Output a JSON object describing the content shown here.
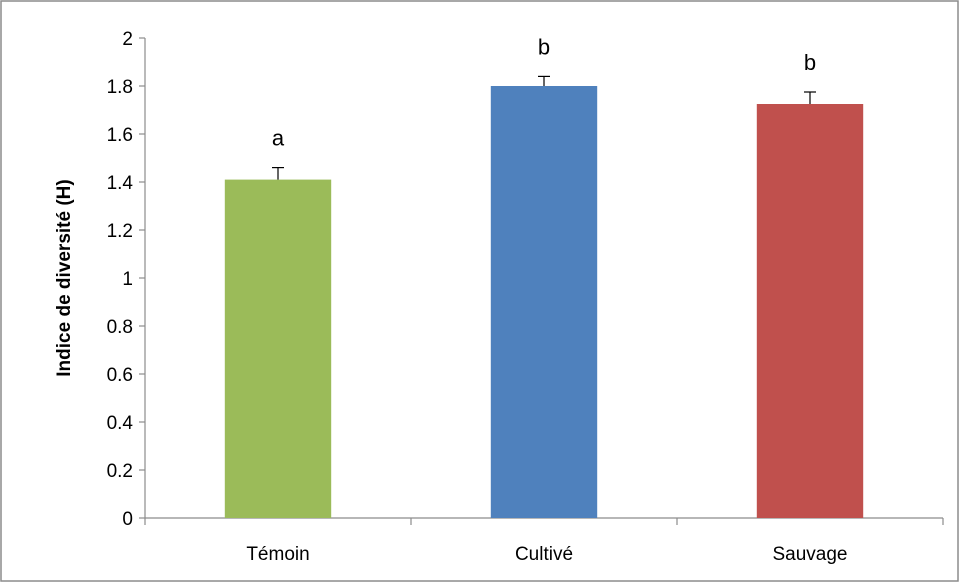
{
  "chart_data": {
    "type": "bar",
    "title": "",
    "xlabel": "",
    "ylabel": "Indice de diversité (H)",
    "ylim": [
      0,
      2
    ],
    "y_ticks": [
      "0",
      "0.2",
      "0.4",
      "0.6",
      "0.8",
      "1",
      "1.2",
      "1.4",
      "1.6",
      "1.8",
      "2"
    ],
    "y_tick_values": [
      0,
      0.2,
      0.4,
      0.6,
      0.8,
      1,
      1.2,
      1.4,
      1.6,
      1.8,
      2
    ],
    "categories": [
      "Témoin",
      "Cultivé",
      "Sauvage"
    ],
    "values": [
      1.41,
      1.8,
      1.725
    ],
    "error_upper": [
      0.05,
      0.04,
      0.05
    ],
    "significance_labels": [
      "a",
      "b",
      "b"
    ],
    "colors": [
      "#9BBB59",
      "#4F81BD",
      "#C0504D"
    ],
    "grid": false,
    "legend": "none"
  }
}
